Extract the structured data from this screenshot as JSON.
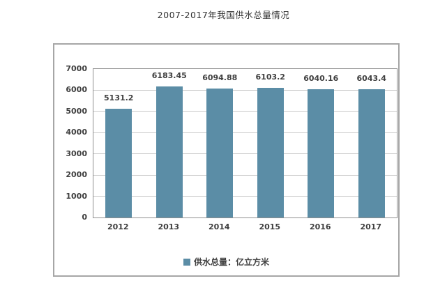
{
  "page": {
    "title": "2007-2017年我国供水总量情况"
  },
  "chart_data": {
    "type": "bar",
    "title": "2007-2017年我国供水总量情况",
    "categories": [
      "2012",
      "2013",
      "2014",
      "2015",
      "2016",
      "2017"
    ],
    "values": [
      5131.2,
      6183.45,
      6094.88,
      6103.2,
      6040.16,
      6043.4
    ],
    "value_labels": [
      "5131.2",
      "6183.45",
      "6094.88",
      "6103.2",
      "6040.16",
      "6043.4"
    ],
    "xlabel": "",
    "ylabel": "",
    "ylim": [
      0,
      7000
    ],
    "y_tick_step": 1000,
    "y_ticks": [
      0,
      1000,
      2000,
      3000,
      4000,
      5000,
      6000,
      7000
    ],
    "grid": true,
    "legend_position": "bottom",
    "legend": [
      {
        "label": "供水总量：亿立方米",
        "color": "#5b8da6"
      }
    ],
    "colors": {
      "bar": "#5b8da6",
      "gridline": "#c9c9c9",
      "plot_border": "#8e8e8e",
      "frame_border": "#a6a6a6",
      "label_text": "#3f3f3f",
      "title_text": "#333333",
      "background": "#ffffff"
    }
  }
}
